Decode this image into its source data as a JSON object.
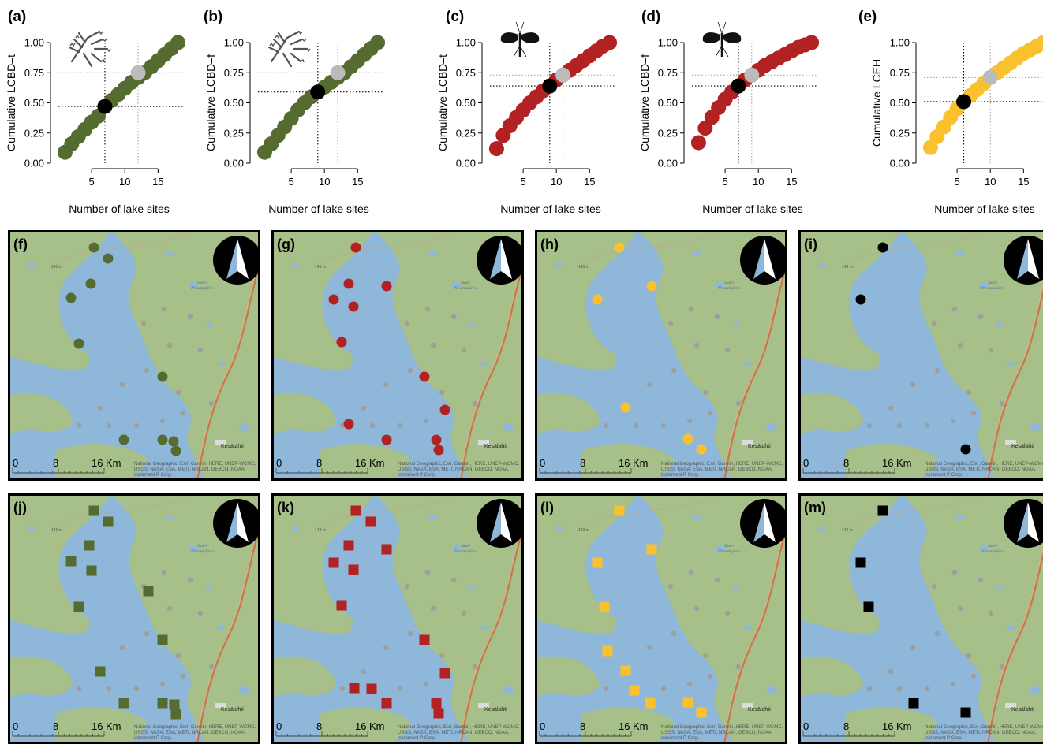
{
  "colors": {
    "green": "#556b2f",
    "red": "#b22222",
    "yellow": "#fbc02d",
    "black": "#000000",
    "highlight_gray": "#bbbbbb",
    "land": "#a7bf88",
    "water": "#8fb7d9",
    "road": "#c9774a"
  },
  "chart_data": [
    {
      "id": "a",
      "type": "scatter",
      "panel_label": "(a)",
      "ylabel": "Cumulative LCBD–t",
      "xlabel": "Number of lake sites",
      "color": "green",
      "x": [
        1,
        2,
        3,
        4,
        5,
        6,
        7,
        8,
        9,
        10,
        11,
        12,
        13,
        14,
        15,
        16,
        17,
        18
      ],
      "y": [
        0.09,
        0.16,
        0.22,
        0.28,
        0.34,
        0.39,
        0.47,
        0.52,
        0.57,
        0.62,
        0.67,
        0.71,
        0.75,
        0.8,
        0.85,
        0.9,
        0.95,
        1.0
      ],
      "highlight_black": {
        "x": 7,
        "y": 0.47
      },
      "highlight_gray": {
        "x": 12,
        "y": 0.75
      },
      "xlim": [
        0,
        19
      ],
      "ylim": [
        0,
        1
      ],
      "xticks": [
        "5",
        "10",
        "15"
      ],
      "yticks": [
        "0.00",
        "0.25",
        "0.50",
        "0.75",
        "1.00"
      ]
    },
    {
      "id": "b",
      "type": "scatter",
      "panel_label": "(b)",
      "ylabel": "Cumulative LCBD–f",
      "xlabel": "Number of lake sites",
      "color": "green",
      "x": [
        1,
        2,
        3,
        4,
        5,
        6,
        7,
        8,
        9,
        10,
        11,
        12,
        13,
        14,
        15,
        16,
        17,
        18
      ],
      "y": [
        0.09,
        0.16,
        0.23,
        0.3,
        0.37,
        0.44,
        0.5,
        0.55,
        0.59,
        0.63,
        0.67,
        0.71,
        0.75,
        0.8,
        0.85,
        0.9,
        0.95,
        1.0
      ],
      "highlight_black": {
        "x": 9,
        "y": 0.59
      },
      "highlight_gray": {
        "x": 12,
        "y": 0.75
      },
      "xlim": [
        0,
        19
      ],
      "ylim": [
        0,
        1
      ],
      "xticks": [
        "5",
        "10",
        "15"
      ],
      "yticks": [
        "0.00",
        "0.25",
        "0.50",
        "0.75",
        "1.00"
      ]
    },
    {
      "id": "c",
      "type": "scatter",
      "panel_label": "(c)",
      "ylabel": "Cumulative LCBD–t",
      "xlabel": "Number of lake sites",
      "color": "red",
      "x": [
        1,
        2,
        3,
        4,
        5,
        6,
        7,
        8,
        9,
        10,
        11,
        12,
        13,
        14,
        15,
        16,
        17,
        18
      ],
      "y": [
        0.12,
        0.23,
        0.31,
        0.38,
        0.44,
        0.5,
        0.55,
        0.6,
        0.64,
        0.69,
        0.73,
        0.77,
        0.81,
        0.85,
        0.89,
        0.93,
        0.97,
        1.0
      ],
      "highlight_black": {
        "x": 9,
        "y": 0.64
      },
      "highlight_gray": {
        "x": 11,
        "y": 0.73
      },
      "xlim": [
        0,
        19
      ],
      "ylim": [
        0,
        1
      ],
      "xticks": [
        "5",
        "10",
        "15"
      ],
      "yticks": [
        "0.00",
        "0.25",
        "0.50",
        "0.75",
        "1.00"
      ]
    },
    {
      "id": "d",
      "type": "scatter",
      "panel_label": "(d)",
      "ylabel": "Cumulative LCBD–f",
      "xlabel": "Number of lake sites",
      "color": "red",
      "x": [
        1,
        2,
        3,
        4,
        5,
        6,
        7,
        8,
        9,
        10,
        11,
        12,
        13,
        14,
        15,
        16,
        17,
        18
      ],
      "y": [
        0.17,
        0.29,
        0.38,
        0.46,
        0.53,
        0.59,
        0.64,
        0.69,
        0.73,
        0.77,
        0.81,
        0.84,
        0.87,
        0.9,
        0.93,
        0.96,
        0.98,
        1.0
      ],
      "highlight_black": {
        "x": 7,
        "y": 0.64
      },
      "highlight_gray": {
        "x": 9,
        "y": 0.73
      },
      "xlim": [
        0,
        19
      ],
      "ylim": [
        0,
        1
      ],
      "xticks": [
        "5",
        "10",
        "15"
      ],
      "yticks": [
        "0.00",
        "0.25",
        "0.50",
        "0.75",
        "1.00"
      ]
    },
    {
      "id": "e",
      "type": "scatter",
      "panel_label": "(e)",
      "ylabel": "Cumulative LCEH",
      "xlabel": "Number of lake sites",
      "color": "yellow",
      "x": [
        1,
        2,
        3,
        4,
        5,
        6,
        7,
        8,
        9,
        10,
        11,
        12,
        13,
        14,
        15,
        16,
        17,
        18
      ],
      "y": [
        0.13,
        0.22,
        0.3,
        0.38,
        0.45,
        0.51,
        0.56,
        0.61,
        0.66,
        0.71,
        0.75,
        0.79,
        0.83,
        0.87,
        0.91,
        0.94,
        0.97,
        1.0
      ],
      "highlight_black": {
        "x": 6,
        "y": 0.51
      },
      "highlight_gray": {
        "x": 10,
        "y": 0.71
      },
      "xlim": [
        0,
        19
      ],
      "ylim": [
        0,
        1
      ],
      "xticks": [
        "5",
        "10",
        "15"
      ],
      "yticks": [
        "0.00",
        "0.25",
        "0.50",
        "0.75",
        "1.00"
      ]
    }
  ],
  "maps": [
    {
      "id": "f",
      "panel_label": "(f)",
      "marker": "circle",
      "color": "green"
    },
    {
      "id": "g",
      "panel_label": "(g)",
      "marker": "circle",
      "color": "red"
    },
    {
      "id": "h",
      "panel_label": "(h)",
      "marker": "circle",
      "color": "yellow"
    },
    {
      "id": "i",
      "panel_label": "(i)",
      "marker": "circle",
      "color": "black"
    },
    {
      "id": "j",
      "panel_label": "(j)",
      "marker": "square",
      "color": "green"
    },
    {
      "id": "k",
      "panel_label": "(k)",
      "marker": "square",
      "color": "red"
    },
    {
      "id": "l",
      "panel_label": "(l)",
      "marker": "square",
      "color": "yellow"
    },
    {
      "id": "m",
      "panel_label": "(m)",
      "marker": "square",
      "color": "black"
    }
  ],
  "map_text": {
    "scale_ticks": [
      "0",
      "8",
      "16"
    ],
    "scale_unit": "Km",
    "elevation": "143 m",
    "lake_name_1": "Suuri",
    "lake_name_2": "Nivankajärvi",
    "town": "Kesälahti",
    "attribution_1": "National Geographic, Esri, Garmin, HERE, UNEP-WCMC,",
    "attribution_2": "USGS, NASA, ESA, METI, NRCAN, GEBCO, NOAA,",
    "attribution_3": "increment P Corp."
  }
}
